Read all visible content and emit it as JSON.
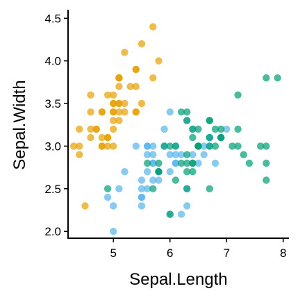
{
  "chart_data": {
    "type": "scatter",
    "xlabel": "Sepal.Length",
    "ylabel": "Sepal.Width",
    "xlim": [
      4.2,
      8.1
    ],
    "ylim": [
      1.92,
      4.6
    ],
    "xticks": [
      "5",
      "6",
      "7",
      "8"
    ],
    "yticks": [
      "2.0",
      "2.5",
      "3.0",
      "3.5",
      "4.0",
      "4.5"
    ],
    "legend": "none",
    "grid": false,
    "series": [
      {
        "color": "#E69F00",
        "points": [
          [
            5.1,
            3.5
          ],
          [
            4.9,
            3.0
          ],
          [
            4.7,
            3.2
          ],
          [
            4.6,
            3.1
          ],
          [
            5.0,
            3.6
          ],
          [
            5.4,
            3.9
          ],
          [
            4.6,
            3.4
          ],
          [
            5.0,
            3.4
          ],
          [
            4.4,
            2.9
          ],
          [
            4.9,
            3.1
          ],
          [
            5.4,
            3.7
          ],
          [
            4.8,
            3.4
          ],
          [
            4.8,
            3.0
          ],
          [
            4.3,
            3.0
          ],
          [
            5.8,
            4.0
          ],
          [
            5.7,
            4.4
          ],
          [
            5.4,
            3.9
          ],
          [
            5.1,
            3.5
          ],
          [
            5.7,
            3.8
          ],
          [
            5.1,
            3.8
          ],
          [
            5.4,
            3.4
          ],
          [
            5.1,
            3.7
          ],
          [
            4.6,
            3.6
          ],
          [
            5.1,
            3.3
          ],
          [
            4.8,
            3.4
          ],
          [
            5.0,
            3.0
          ],
          [
            5.0,
            3.4
          ],
          [
            5.2,
            3.5
          ],
          [
            5.2,
            3.4
          ],
          [
            4.7,
            3.2
          ],
          [
            4.8,
            3.1
          ],
          [
            5.4,
            3.4
          ],
          [
            5.2,
            4.1
          ],
          [
            5.5,
            4.2
          ],
          [
            4.9,
            3.1
          ],
          [
            5.0,
            3.2
          ],
          [
            5.5,
            3.5
          ],
          [
            4.9,
            3.6
          ],
          [
            4.4,
            3.0
          ],
          [
            5.1,
            3.4
          ],
          [
            5.0,
            3.5
          ],
          [
            4.5,
            2.3
          ],
          [
            4.4,
            3.2
          ],
          [
            5.0,
            3.5
          ],
          [
            5.1,
            3.8
          ],
          [
            4.8,
            3.0
          ],
          [
            5.1,
            3.8
          ],
          [
            4.6,
            3.2
          ],
          [
            5.3,
            3.7
          ],
          [
            5.0,
            3.3
          ]
        ]
      },
      {
        "color": "#56B4E9",
        "points": [
          [
            7.0,
            3.2
          ],
          [
            6.4,
            3.2
          ],
          [
            6.9,
            3.1
          ],
          [
            5.5,
            2.3
          ],
          [
            6.5,
            2.8
          ],
          [
            5.7,
            2.8
          ],
          [
            6.3,
            3.3
          ],
          [
            4.9,
            2.4
          ],
          [
            6.6,
            2.9
          ],
          [
            5.2,
            2.7
          ],
          [
            5.0,
            2.0
          ],
          [
            5.9,
            3.0
          ],
          [
            6.0,
            2.2
          ],
          [
            6.1,
            2.9
          ],
          [
            5.6,
            2.9
          ],
          [
            6.7,
            3.1
          ],
          [
            5.6,
            3.0
          ],
          [
            5.8,
            2.7
          ],
          [
            6.2,
            2.2
          ],
          [
            5.6,
            2.5
          ],
          [
            5.9,
            3.2
          ],
          [
            6.1,
            2.8
          ],
          [
            6.3,
            2.5
          ],
          [
            6.1,
            2.8
          ],
          [
            6.4,
            2.9
          ],
          [
            6.6,
            3.0
          ],
          [
            6.8,
            2.8
          ],
          [
            6.7,
            3.0
          ],
          [
            6.0,
            2.9
          ],
          [
            5.7,
            2.6
          ],
          [
            5.5,
            2.4
          ],
          [
            5.5,
            2.4
          ],
          [
            5.8,
            2.7
          ],
          [
            6.0,
            2.7
          ],
          [
            5.4,
            3.0
          ],
          [
            6.0,
            3.4
          ],
          [
            6.7,
            3.1
          ],
          [
            6.3,
            2.3
          ],
          [
            5.6,
            3.0
          ],
          [
            5.5,
            2.5
          ],
          [
            5.5,
            2.6
          ],
          [
            6.1,
            3.0
          ],
          [
            5.8,
            2.6
          ],
          [
            5.0,
            2.3
          ],
          [
            5.6,
            2.7
          ],
          [
            5.7,
            3.0
          ],
          [
            5.7,
            2.9
          ],
          [
            6.2,
            2.9
          ],
          [
            5.1,
            2.5
          ],
          [
            5.7,
            2.8
          ]
        ]
      },
      {
        "color": "#009E73",
        "points": [
          [
            6.3,
            3.3
          ],
          [
            5.8,
            2.7
          ],
          [
            7.1,
            3.0
          ],
          [
            6.3,
            2.9
          ],
          [
            6.5,
            3.0
          ],
          [
            7.6,
            3.0
          ],
          [
            4.9,
            2.5
          ],
          [
            7.3,
            2.9
          ],
          [
            6.7,
            2.5
          ],
          [
            7.2,
            3.6
          ],
          [
            6.5,
            3.2
          ],
          [
            6.4,
            2.7
          ],
          [
            6.8,
            3.0
          ],
          [
            5.7,
            2.5
          ],
          [
            5.8,
            2.8
          ],
          [
            6.4,
            3.2
          ],
          [
            6.5,
            3.0
          ],
          [
            7.7,
            3.8
          ],
          [
            7.7,
            2.6
          ],
          [
            6.0,
            2.2
          ],
          [
            6.9,
            3.2
          ],
          [
            5.6,
            2.8
          ],
          [
            7.7,
            2.8
          ],
          [
            6.3,
            2.7
          ],
          [
            6.7,
            3.3
          ],
          [
            7.2,
            3.2
          ],
          [
            6.2,
            2.8
          ],
          [
            6.1,
            3.0
          ],
          [
            6.4,
            2.8
          ],
          [
            7.2,
            3.0
          ],
          [
            7.4,
            2.8
          ],
          [
            7.9,
            3.8
          ],
          [
            6.4,
            2.8
          ],
          [
            6.3,
            2.8
          ],
          [
            6.1,
            2.6
          ],
          [
            7.7,
            3.0
          ],
          [
            6.3,
            3.4
          ],
          [
            6.4,
            3.1
          ],
          [
            6.0,
            3.0
          ],
          [
            6.9,
            3.1
          ],
          [
            6.7,
            3.1
          ],
          [
            6.9,
            3.1
          ],
          [
            5.8,
            2.7
          ],
          [
            6.8,
            3.2
          ],
          [
            6.7,
            3.3
          ],
          [
            6.7,
            3.0
          ],
          [
            6.3,
            2.5
          ],
          [
            6.5,
            3.0
          ],
          [
            6.2,
            3.4
          ],
          [
            5.9,
            3.0
          ]
        ]
      }
    ]
  }
}
